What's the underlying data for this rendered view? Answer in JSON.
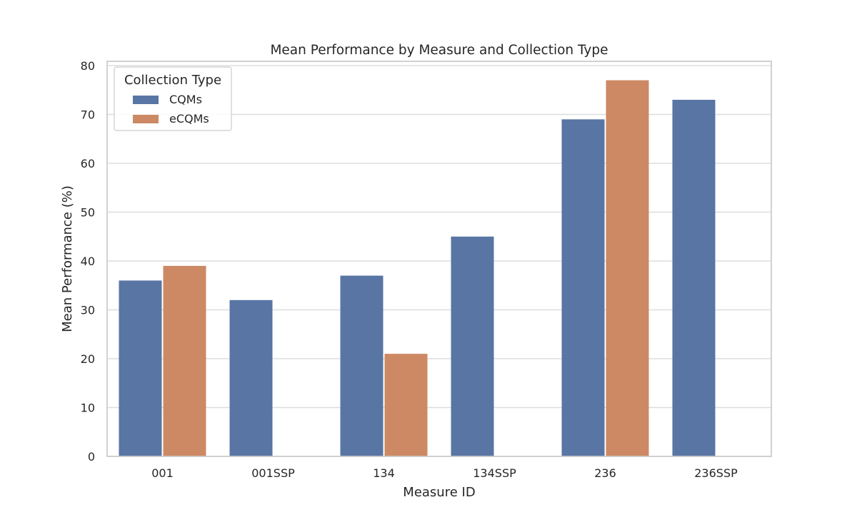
{
  "colors": {
    "CQMs": "#5875a4",
    "eCQMs": "#cc8963",
    "grid": "#dddddd",
    "frame": "#cccccc"
  },
  "chart_data": {
    "type": "bar",
    "title": "Mean Performance by Measure and Collection Type",
    "xlabel": "Measure ID",
    "ylabel": "Mean Performance (%)",
    "categories": [
      "001",
      "001SSP",
      "134",
      "134SSP",
      "236",
      "236SSP"
    ],
    "series": [
      {
        "name": "CQMs",
        "values": [
          36,
          32,
          37,
          45,
          69,
          73
        ]
      },
      {
        "name": "eCQMs",
        "values": [
          39,
          null,
          21,
          null,
          77,
          null
        ]
      }
    ],
    "ylim": [
      0,
      80
    ],
    "yticks": [
      0,
      10,
      20,
      30,
      40,
      50,
      60,
      70,
      80
    ],
    "grid": "horizontal",
    "legend": {
      "title": "Collection Type",
      "placement": "top-left",
      "entries": [
        "CQMs",
        "eCQMs"
      ]
    }
  }
}
